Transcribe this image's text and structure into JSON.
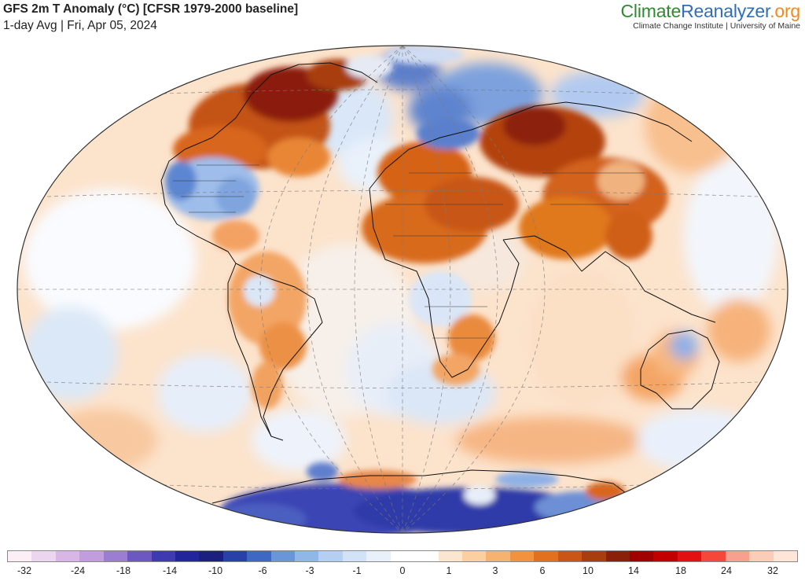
{
  "header": {
    "title": "GFS 2m T Anomaly (°C) [CFSR 1979-2000 baseline]",
    "subtitle": "1-day Avg | Fri, Apr 05, 2024"
  },
  "logo": {
    "part1": "Climate",
    "part2": "Reanalyzer",
    "part3": ".org",
    "tagline": "Climate Change Institute | University of Maine"
  },
  "legend": {
    "labels": [
      "-32",
      "-24",
      "-18",
      "-14",
      "-10",
      "-6",
      "-3",
      "-1",
      "0",
      "1",
      "3",
      "6",
      "10",
      "14",
      "18",
      "24",
      "32"
    ],
    "colors": [
      "#fbeef5",
      "#ecd6ef",
      "#d8b6e6",
      "#c19ddd",
      "#9b7dd2",
      "#6d58c2",
      "#3e3ab0",
      "#22259a",
      "#1a1f80",
      "#2940a8",
      "#3f68c4",
      "#6a95d8",
      "#91b7e8",
      "#b4cff2",
      "#d2e3f7",
      "#e8f0fa",
      "#ffffff",
      "#ffffff",
      "#fde6cf",
      "#fbcf9f",
      "#f8b26f",
      "#f2923f",
      "#e2711f",
      "#c95615",
      "#a83d0e",
      "#8a1f0a",
      "#a00000",
      "#c20000",
      "#e21010",
      "#f5483a",
      "#f7a08e",
      "#fbcdb8",
      "#fde6d8"
    ]
  }
}
